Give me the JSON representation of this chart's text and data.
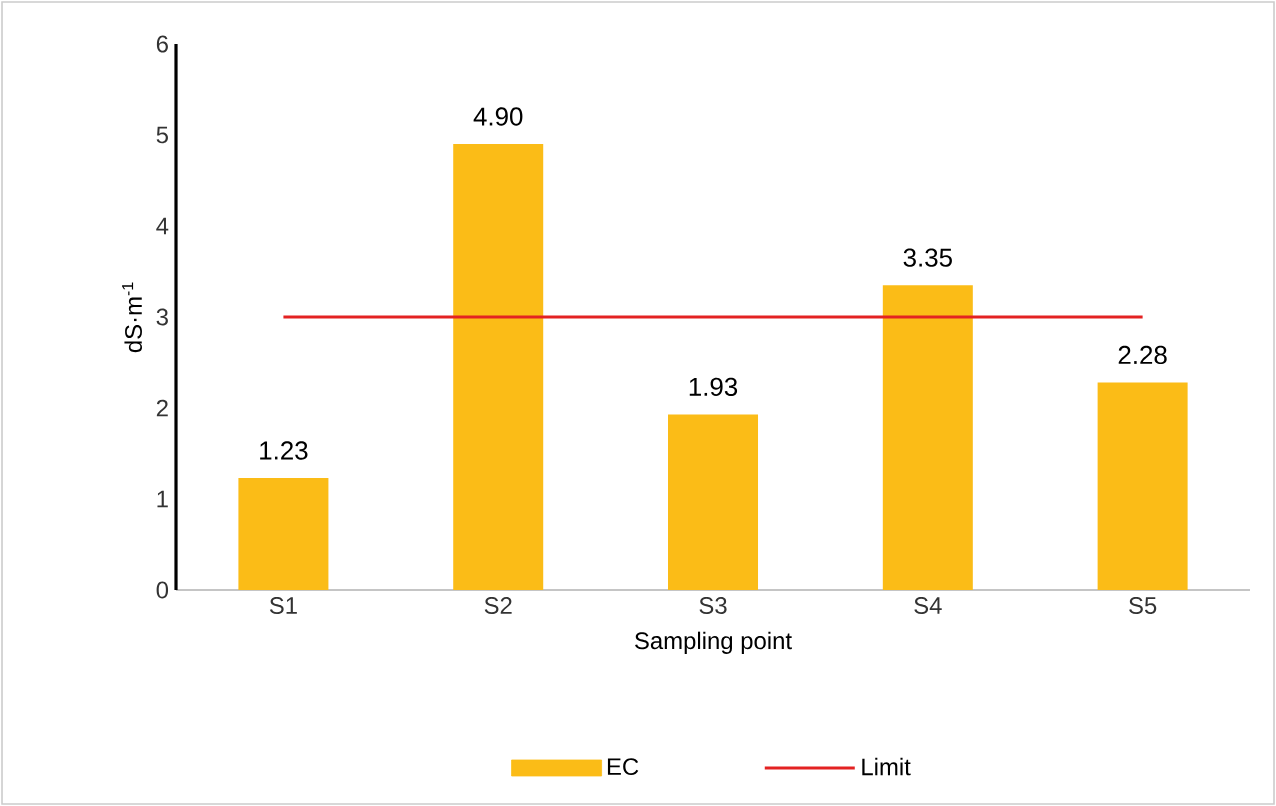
{
  "chart_data": {
    "type": "bar",
    "xlabel": "Sampling point",
    "ylabel": "dS·m$^{-1}$",
    "categories": [
      "S1",
      "S2",
      "S3",
      "S4",
      "S5"
    ],
    "series": [
      {
        "name": "EC",
        "color": "#fbbc17",
        "values": [
          1.23,
          4.9,
          1.93,
          3.35,
          2.28
        ],
        "value_labels": [
          "1.23",
          "4.90",
          "1.93",
          "3.35",
          "2.28"
        ]
      },
      {
        "name": "Limit",
        "type": "line",
        "color": "#e32222",
        "values": [
          3,
          3,
          3,
          3,
          3
        ]
      }
    ],
    "ylim": [
      0,
      6
    ],
    "yticks": [
      0,
      1,
      2,
      3,
      4,
      5,
      6
    ],
    "grid": false,
    "legend": "bottom"
  }
}
